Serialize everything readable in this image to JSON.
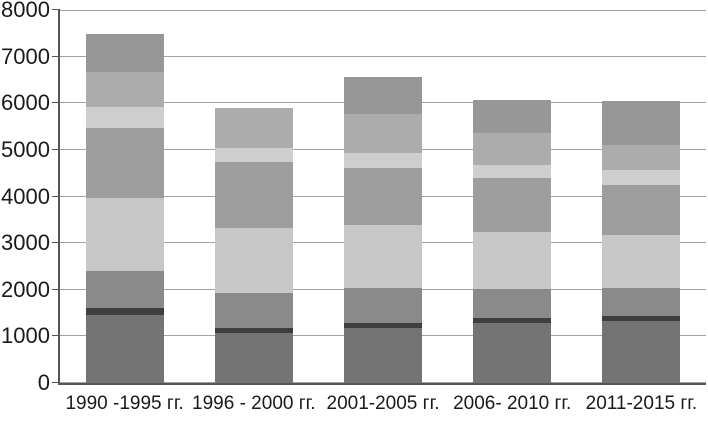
{
  "figure": {
    "background_color": "#ffffff",
    "text_color": "#1a1a1a",
    "axis_line_color": "#555555",
    "gridline_color": "#a2a2a2"
  },
  "chart_data": {
    "type": "bar",
    "stacked": true,
    "title": "",
    "xlabel": "",
    "ylabel": "",
    "legend": false,
    "grid": true,
    "ylim": [
      0,
      8000
    ],
    "yticks": [
      0,
      1000,
      2000,
      3000,
      4000,
      5000,
      6000,
      7000,
      8000
    ],
    "ytick_labels": [
      "0",
      "1000",
      "2000",
      "3000",
      "4000",
      "5000",
      "6000",
      "7000",
      "8000"
    ],
    "categories": [
      "1990 -1995 гг.",
      "1996 - 2000 гг.",
      "2001-2005 гг.",
      "2006- 2010 гг.",
      "2011-2015 гг."
    ],
    "series": [
      {
        "name": "segment-1-bottom-dark-gray",
        "color": "#747474",
        "values": [
          1450,
          1070,
          1180,
          1290,
          1340
        ]
      },
      {
        "name": "segment-2-thin-near-black",
        "color": "#3e3e3e",
        "values": [
          150,
          110,
          110,
          100,
          100
        ]
      },
      {
        "name": "segment-3-medium-gray",
        "color": "#8a8a8a",
        "values": [
          810,
          760,
          750,
          630,
          600
        ]
      },
      {
        "name": "segment-4-light-gray",
        "color": "#c7c7c7",
        "values": [
          1550,
          1380,
          1350,
          1230,
          1140
        ]
      },
      {
        "name": "segment-5-mid-gray",
        "color": "#9d9d9d",
        "values": [
          1500,
          1430,
          1220,
          1140,
          1070
        ]
      },
      {
        "name": "segment-6-pale-gray",
        "color": "#cecece",
        "values": [
          470,
          290,
          320,
          290,
          320
        ]
      },
      {
        "name": "segment-7-silver-gray",
        "color": "#acacac",
        "values": [
          750,
          850,
          830,
          680,
          530
        ]
      },
      {
        "name": "segment-8-top-dim-gray",
        "color": "#979797",
        "values": [
          800,
          0,
          800,
          700,
          950
        ]
      }
    ],
    "bar_totals": [
      7480,
      5890,
      6560,
      6060,
      6050
    ]
  }
}
